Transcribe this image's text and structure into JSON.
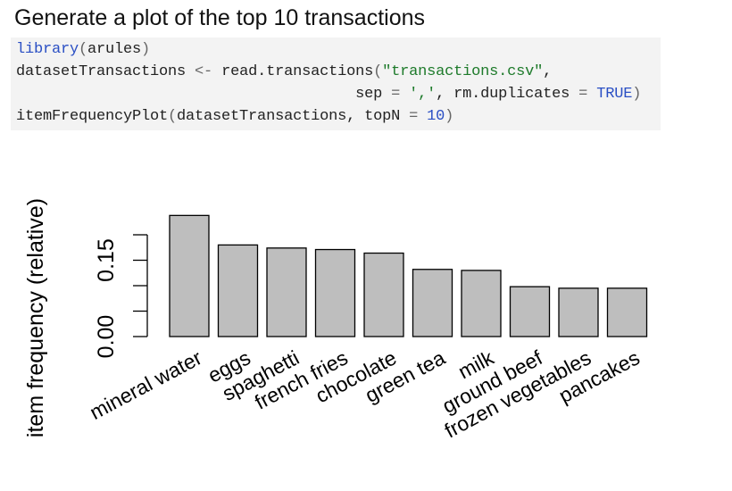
{
  "slide": {
    "title": "Generate a plot of the top 10 transactions"
  },
  "code": {
    "line1": {
      "fn": "library",
      "open": "(",
      "arg": "arules",
      "close": ")"
    },
    "line2": {
      "var": "datasetTransactions",
      "assign": " <- ",
      "fn": "read.transactions",
      "open": "(",
      "str": "\"transactions.csv\"",
      "comma": ","
    },
    "line3": {
      "indent": "                                      ",
      "sep_key": "sep",
      "eq1": " = ",
      "sep_val": "','",
      "comma": ", ",
      "rm_key": "rm.duplicates",
      "eq2": " = ",
      "rm_val": "TRUE",
      "close": ")"
    },
    "line4": {
      "fn": "itemFrequencyPlot",
      "open": "(",
      "arg": "datasetTransactions, ",
      "top_key": "topN",
      "eq": " = ",
      "top_val": "10",
      "close": ")"
    }
  },
  "chart_data": {
    "type": "bar",
    "ylabel": "item frequency (relative)",
    "xlabel": "",
    "ylim": [
      0,
      0.24
    ],
    "yticks": [
      0.0,
      0.15
    ],
    "ytick_labels": [
      "0.00",
      "0.15"
    ],
    "yaxis_range": [
      0,
      0.2
    ],
    "categories": [
      "mineral water",
      "eggs",
      "spaghetti",
      "french fries",
      "chocolate",
      "green tea",
      "milk",
      "ground beef",
      "frozen vegetables",
      "pancakes"
    ],
    "values": [
      0.238,
      0.18,
      0.174,
      0.171,
      0.164,
      0.132,
      0.13,
      0.098,
      0.095,
      0.095
    ],
    "bar_color": "#bebebe",
    "grid": false
  }
}
